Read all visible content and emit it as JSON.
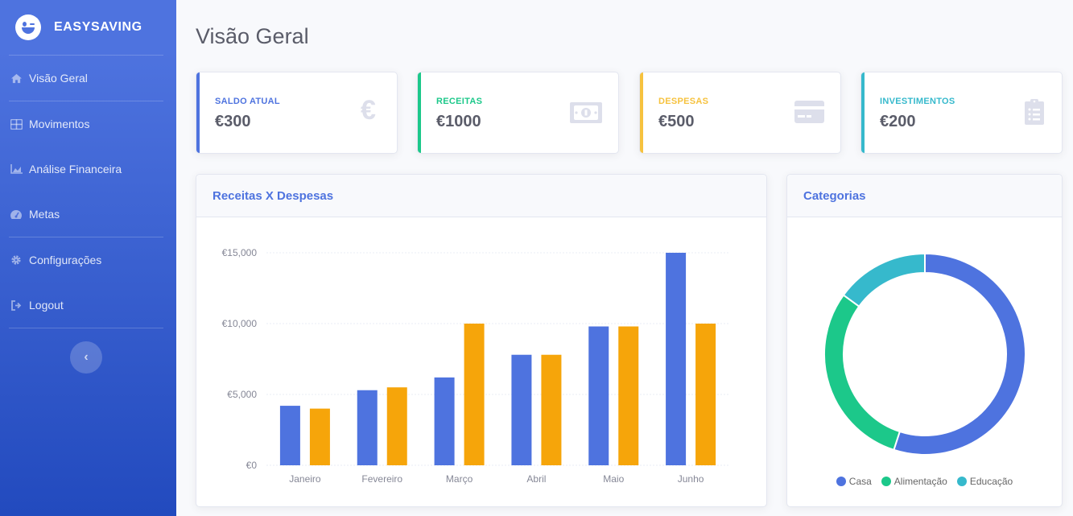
{
  "brand": {
    "name": "EASYSAVING"
  },
  "sidebar": {
    "items": [
      {
        "label": "Visão Geral",
        "icon": "home-icon"
      },
      {
        "label": "Movimentos",
        "icon": "table-icon"
      },
      {
        "label": "Análise Financeira",
        "icon": "area-chart-icon"
      },
      {
        "label": "Metas",
        "icon": "gauge-icon"
      },
      {
        "label": "Configurações",
        "icon": "gear-icon"
      },
      {
        "label": "Logout",
        "icon": "sign-out-icon"
      }
    ],
    "toggle_glyph": "‹"
  },
  "page": {
    "title": "Visão Geral"
  },
  "stats": [
    {
      "label": "SALDO ATUAL",
      "value": "€300",
      "color": "#4e73df",
      "icon": "euro-icon"
    },
    {
      "label": "RECEITAS",
      "value": "€1000",
      "color": "#1cc88a",
      "icon": "money-bill-icon"
    },
    {
      "label": "DESPESAS",
      "value": "€500",
      "color": "#f6c23e",
      "icon": "credit-card-icon"
    },
    {
      "label": "INVESTIMENTOS",
      "value": "€200",
      "color": "#36b9cc",
      "icon": "clipboard-list-icon"
    }
  ],
  "bar_card": {
    "title": "Receitas X Despesas"
  },
  "pie_card": {
    "title": "Categorias"
  },
  "chart_data": [
    {
      "type": "bar",
      "title": "Receitas X Despesas",
      "categories": [
        "Janeiro",
        "Fevereiro",
        "Março",
        "Abril",
        "Maio",
        "Junho"
      ],
      "series": [
        {
          "values": [
            4200,
            5300,
            6200,
            7800,
            9800,
            15000
          ],
          "color": "#4e73df"
        },
        {
          "values": [
            4000,
            5500,
            10000,
            7800,
            9800,
            10000
          ],
          "color": "#f6a50a"
        }
      ],
      "ylim": [
        0,
        15000
      ],
      "yticks": [
        "€0",
        "€5,000",
        "€10,000",
        "€15,000"
      ],
      "ytick_values": [
        0,
        5000,
        10000,
        15000
      ],
      "grid": true
    },
    {
      "type": "pie",
      "title": "Categorias",
      "categories": [
        "Casa",
        "Alimentação",
        "Educação"
      ],
      "values": [
        55,
        30,
        15
      ],
      "colors": [
        "#4e73df",
        "#1cc88a",
        "#36b9cc"
      ],
      "legend_position": "bottom"
    }
  ]
}
